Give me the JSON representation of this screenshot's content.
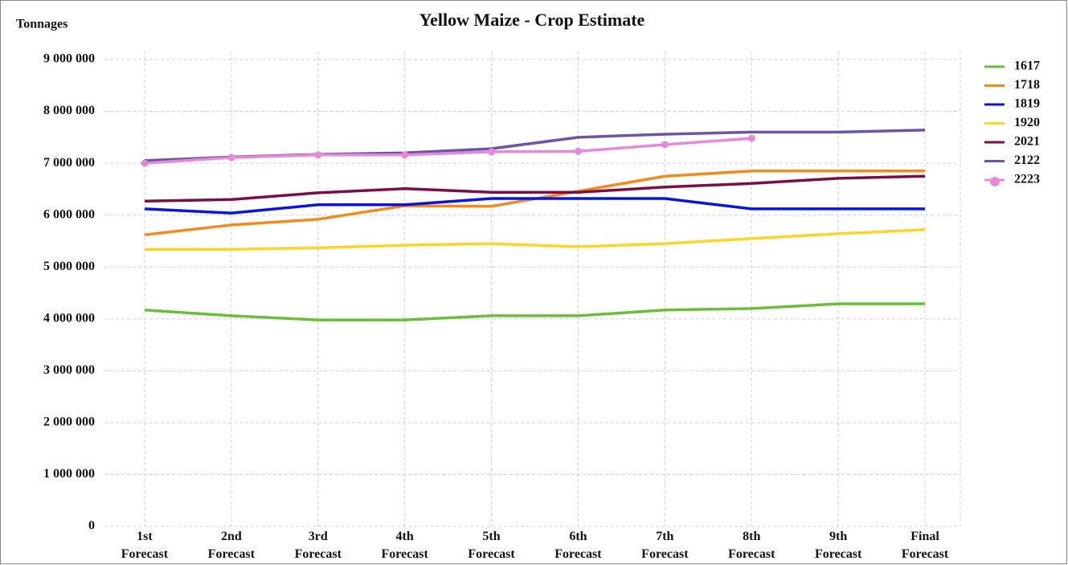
{
  "chart_data": {
    "type": "line",
    "title": "Yellow Maize - Crop Estimate",
    "y_label": "Tonnages",
    "categories": [
      "1st Forecast",
      "2nd Forecast",
      "3rd Forecast",
      "4th Forecast",
      "5th Forecast",
      "6th Forecast",
      "7th Forecast",
      "8th Forecast",
      "9th Forecast",
      "Final Forecast"
    ],
    "ylim": [
      0,
      9000000
    ],
    "yticks": [
      0,
      {
        "value": 1000000,
        "label": "1 000 000"
      },
      {
        "value": 2000000,
        "label": "2 000 000"
      },
      {
        "value": 3000000,
        "label": "3 000 000"
      },
      {
        "value": 4000000,
        "label": "4 000 000"
      },
      {
        "value": 5000000,
        "label": "5 000 000"
      },
      {
        "value": 6000000,
        "label": "6 000 000"
      },
      {
        "value": 7000000,
        "label": "7 000 000"
      },
      {
        "value": 8000000,
        "label": "8 000 000"
      },
      {
        "value": 9000000,
        "label": "9 000 000"
      }
    ],
    "grid": true,
    "legend": "right",
    "series": [
      {
        "name": "1617",
        "color": "#6abf3a",
        "values": [
          4170000,
          4060000,
          3980000,
          3980000,
          4060000,
          4060000,
          4170000,
          4200000,
          4290000,
          4290000
        ]
      },
      {
        "name": "1718",
        "color": "#f28a1c",
        "values": [
          5620000,
          5810000,
          5920000,
          6180000,
          6170000,
          6460000,
          6750000,
          6850000,
          6850000,
          6850000
        ]
      },
      {
        "name": "1819",
        "color": "#0a14e0",
        "values": [
          6120000,
          6040000,
          6200000,
          6200000,
          6320000,
          6320000,
          6320000,
          6120000,
          6120000,
          6120000
        ]
      },
      {
        "name": "1920",
        "color": "#fbd52a",
        "values": [
          5340000,
          5340000,
          5370000,
          5420000,
          5450000,
          5390000,
          5450000,
          5550000,
          5640000,
          5720000
        ]
      },
      {
        "name": "2021",
        "color": "#7a0f45",
        "values": [
          6270000,
          6300000,
          6430000,
          6510000,
          6440000,
          6440000,
          6540000,
          6610000,
          6710000,
          6750000
        ]
      },
      {
        "name": "2122",
        "color": "#6a55a8",
        "values": [
          7050000,
          7120000,
          7170000,
          7200000,
          7280000,
          7500000,
          7560000,
          7600000,
          7600000,
          7640000
        ]
      },
      {
        "name": "2223",
        "color": "#e889d8",
        "marker": true,
        "values": [
          7000000,
          7110000,
          7160000,
          7160000,
          7220000,
          7230000,
          7360000,
          7480000,
          null,
          null
        ]
      }
    ]
  }
}
